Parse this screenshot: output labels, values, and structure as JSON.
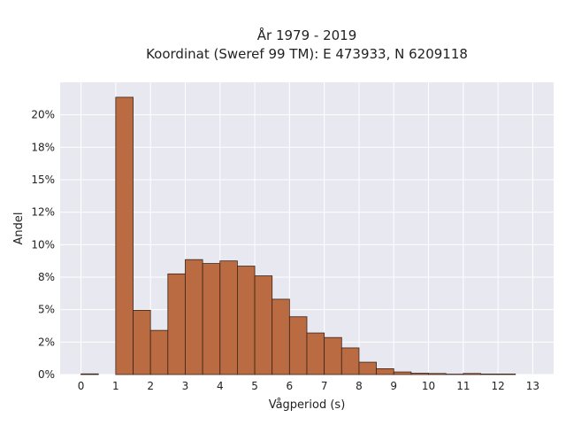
{
  "chart_data": {
    "type": "bar",
    "title_line1": "År 1979 - 2019",
    "title_line2": "Koordinat (Sweref 99 TM): E 473933, N 6209118",
    "xlabel": "Vågperiod (s)",
    "ylabel": "Andel",
    "xlim": [
      -0.6,
      13.6
    ],
    "ylim": [
      0,
      0.225
    ],
    "x_ticks": [
      {
        "value": 0,
        "label": "0"
      },
      {
        "value": 1,
        "label": "1"
      },
      {
        "value": 2,
        "label": "2"
      },
      {
        "value": 3,
        "label": "3"
      },
      {
        "value": 4,
        "label": "4"
      },
      {
        "value": 5,
        "label": "5"
      },
      {
        "value": 6,
        "label": "6"
      },
      {
        "value": 7,
        "label": "7"
      },
      {
        "value": 8,
        "label": "8"
      },
      {
        "value": 9,
        "label": "9"
      },
      {
        "value": 10,
        "label": "10"
      },
      {
        "value": 11,
        "label": "11"
      },
      {
        "value": 12,
        "label": "12"
      },
      {
        "value": 13,
        "label": "13"
      }
    ],
    "y_ticks": [
      {
        "value": 0,
        "label": "0%"
      },
      {
        "value": 0.025,
        "label": "2%"
      },
      {
        "value": 0.05,
        "label": "5%"
      },
      {
        "value": 0.075,
        "label": "8%"
      },
      {
        "value": 0.1,
        "label": "10%"
      },
      {
        "value": 0.125,
        "label": "12%"
      },
      {
        "value": 0.15,
        "label": "15%"
      },
      {
        "value": 0.175,
        "label": "18%"
      },
      {
        "value": 0.2,
        "label": "20%"
      }
    ],
    "bin_width": 0.5,
    "bins": [
      {
        "x0": -0.0,
        "value": 0.0005
      },
      {
        "x0": 1.0,
        "value": 0.2135
      },
      {
        "x0": 1.5,
        "value": 0.0495
      },
      {
        "x0": 2.0,
        "value": 0.034
      },
      {
        "x0": 2.5,
        "value": 0.0775
      },
      {
        "x0": 3.0,
        "value": 0.0885
      },
      {
        "x0": 3.5,
        "value": 0.0855
      },
      {
        "x0": 4.0,
        "value": 0.0875
      },
      {
        "x0": 4.5,
        "value": 0.0835
      },
      {
        "x0": 5.0,
        "value": 0.076
      },
      {
        "x0": 5.5,
        "value": 0.058
      },
      {
        "x0": 6.0,
        "value": 0.0445
      },
      {
        "x0": 6.5,
        "value": 0.032
      },
      {
        "x0": 7.0,
        "value": 0.0285
      },
      {
        "x0": 7.5,
        "value": 0.0205
      },
      {
        "x0": 8.0,
        "value": 0.0095
      },
      {
        "x0": 8.5,
        "value": 0.0045
      },
      {
        "x0": 9.0,
        "value": 0.002
      },
      {
        "x0": 9.5,
        "value": 0.001
      },
      {
        "x0": 10.0,
        "value": 0.0008
      },
      {
        "x0": 10.5,
        "value": 0.0003
      },
      {
        "x0": 11.0,
        "value": 0.0008
      },
      {
        "x0": 11.5,
        "value": 0.0004
      },
      {
        "x0": 12.0,
        "value": 0.0004
      }
    ],
    "bar_color": "#bb6b42",
    "bar_edge_color": "#3a2418",
    "plot_background": "#e8e8f0",
    "grid": true,
    "grid_color": "#ffffff"
  }
}
